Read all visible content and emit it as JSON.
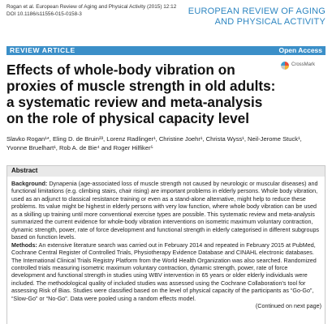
{
  "header": {
    "citation_line1": "Rogan et al. European Review of Aging and Physical Activity  (2015) 12:12",
    "citation_line2": "DOI 10.1186/s11556-015-0158-3",
    "journal_line1": "EUROPEAN REVIEW OF AGING",
    "journal_line2": "AND PHYSICAL ACTIVITY"
  },
  "bar": {
    "article_type": "REVIEW ARTICLE",
    "access": "Open Access",
    "color": "#3b8fc8"
  },
  "crossmark": {
    "label": "CrossMark"
  },
  "title": "Effects of whole-body vibration on proxies of muscle strength in old adults: a systematic review and meta-analysis on the role of physical capacity level",
  "authors": {
    "line1": "Slavko Rogan¹*, Eling D. de Bruin²³, Lorenz Radlinger¹, Christine Joehr¹, Christa Wyss¹, Neil-Jerome Stuck¹,",
    "line2": "Yvonne Bruelhart¹, Rob A. de Bie⁴ and Roger Hilfiker⁵"
  },
  "abstract": {
    "heading": "Abstract",
    "background_lead": "Background:",
    "background_text": " Dynapenia (age-associated loss of muscle strength not caused by neurologic or muscular diseases) and functional limitations (e.g. climbing stairs, chair rising) are important problems in elderly persons. Whole body vibration, used as an adjunct to classical resistance training or even as a stand-alone alternative, might help to reduce these problems. Its value might be highest in elderly persons with very low function, where whole body vibration can be used as a skilling up training until more conventional exercise types are possible. This systematic review and meta-analysis summarized the current evidence for whole-body vibration interventions on isometric maximum voluntary contraction, dynamic strength, power, rate of force development and functional strength in elderly categorised in different subgroups based on function levels.",
    "methods_lead": "Methods:",
    "methods_text": " An extensive literature search was carried out in February 2014 and repeated in February 2015 at PubMed, Cochrane Central Register of Controlled Trials, Physiotherapy Evidence Database and CINAHL electronic databases. The International Clinical Trials Registry Platform from the World Health Organization was also searched. Randomized controlled trials measuring isometric maximum voluntary contraction, dynamic strength, power, rate of force development and functional strength in studies using WBV intervention in 65 years or older elderly individuals were included. The methodological quality of included studies was assessed using the Cochrane Collaboration's tool for assessing Risk of Bias. Studies were classified based on the level of physical capacity of the participants as “Go-Go”, “Slow-Go” or “No-Go”. Data were pooled using a random effects model.",
    "continued": "(Continued on next page)"
  }
}
